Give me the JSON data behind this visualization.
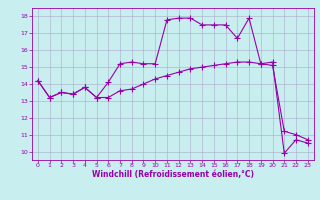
{
  "xlabel": "Windchill (Refroidissement éolien,°C)",
  "bg_color": "#c8eef0",
  "line_color": "#9900aa",
  "grid_color": "#aaaacc",
  "xlim": [
    -0.5,
    23.5
  ],
  "ylim": [
    9.5,
    18.5
  ],
  "xticks": [
    0,
    1,
    2,
    3,
    4,
    5,
    6,
    7,
    8,
    9,
    10,
    11,
    12,
    13,
    14,
    15,
    16,
    17,
    18,
    19,
    20,
    21,
    22,
    23
  ],
  "yticks": [
    10,
    11,
    12,
    13,
    14,
    15,
    16,
    17,
    18
  ],
  "line1_x": [
    0,
    1,
    2,
    3,
    4,
    5,
    6,
    7,
    8,
    9,
    10,
    11,
    12,
    13,
    14,
    15,
    16,
    17,
    18,
    19,
    20,
    21,
    22,
    23
  ],
  "line1_y": [
    14.2,
    13.2,
    13.5,
    13.4,
    13.8,
    13.2,
    14.1,
    15.2,
    15.3,
    15.2,
    15.2,
    17.8,
    17.9,
    17.9,
    17.5,
    17.5,
    17.5,
    16.7,
    17.9,
    15.2,
    15.3,
    9.9,
    10.7,
    10.5
  ],
  "line2_x": [
    0,
    1,
    2,
    3,
    4,
    5,
    6,
    7,
    8,
    9,
    10,
    11,
    12,
    13,
    14,
    15,
    16,
    17,
    18,
    19,
    20,
    21,
    22,
    23
  ],
  "line2_y": [
    14.2,
    13.2,
    13.5,
    13.4,
    13.8,
    13.2,
    13.2,
    13.6,
    13.7,
    14.0,
    14.3,
    14.5,
    14.7,
    14.9,
    15.0,
    15.1,
    15.2,
    15.3,
    15.3,
    15.2,
    15.1,
    11.2,
    11.0,
    10.7
  ],
  "marker": "+",
  "markersize": 4,
  "linewidth": 0.8,
  "tick_fontsize": 4.5,
  "label_fontsize": 5.5
}
